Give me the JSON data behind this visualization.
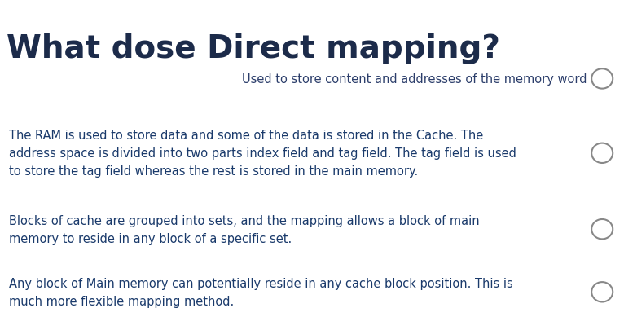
{
  "title": "What dose Direct mapping?",
  "title_color": "#1c2b4a",
  "title_fontsize": 28,
  "title_fontweight": "bold",
  "background_color": "#ffffff",
  "option1_text": "Used to store content and addresses of the memory word",
  "option1_color": "#2c3e6b",
  "option2_text": "The RAM is used to store data and some of the data is stored in the Cache. The\naddress space is divided into two parts index field and tag field. The tag field is used\nto store the tag field whereas the rest is stored in the main memory.",
  "option2_color": "#1a3a6b",
  "option3_text": "Blocks of cache are grouped into sets, and the mapping allows a block of main\nmemory to reside in any block of a specific set.",
  "option3_color": "#1a3a6b",
  "option4_text": "Any block of Main memory can potentially reside in any cache block position. This is\nmuch more flexible mapping method.",
  "option4_color": "#1a3a6b",
  "circle_color": "#888888",
  "text_fontsize": 10.5,
  "figwidth": 7.66,
  "figheight": 4.06,
  "dpi": 100
}
